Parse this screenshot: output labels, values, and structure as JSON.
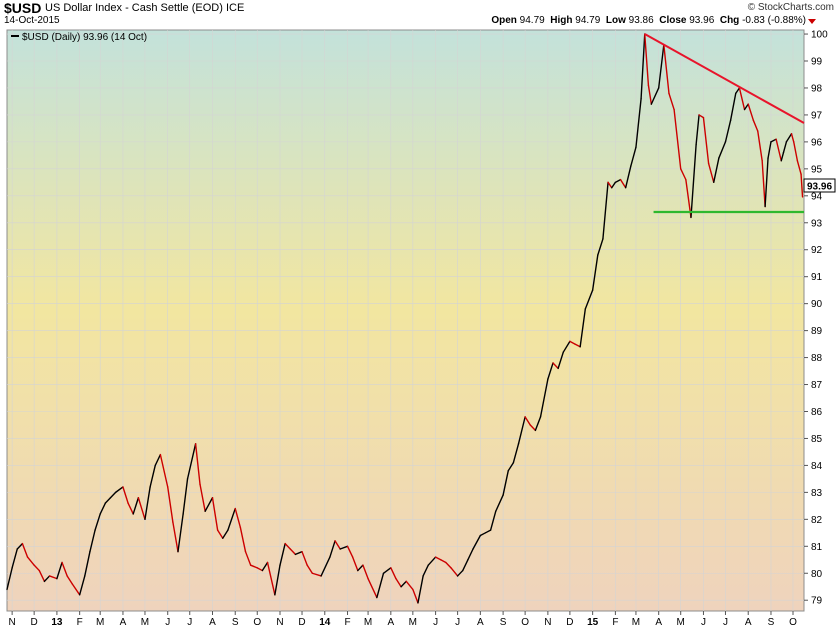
{
  "header": {
    "ticker": "$USD",
    "name": "US Dollar Index - Cash Settle (EOD)",
    "exchange": "ICE",
    "date": "14-Oct-2015",
    "brand": "© StockCharts.com",
    "open_label": "Open",
    "open": "94.79",
    "high_label": "High",
    "high": "94.79",
    "low_label": "Low",
    "low": "93.86",
    "close_label": "Close",
    "close": "93.96",
    "chg_label": "Chg",
    "chg": "-0.83 (-0.88%)"
  },
  "legend": {
    "text": "$USD (Daily) 93.96 (14 Oct)"
  },
  "last_price_label": "93.96",
  "colors": {
    "up": "#000000",
    "down": "#cc0000",
    "resistance": "#e8142b",
    "support": "#2eb82e",
    "bg_top": "#c3e2db",
    "bg_mid": "#f2e6a0",
    "bg_bottom": "#efd3bd"
  },
  "chart_data": {
    "type": "line",
    "title": "$USD US Dollar Index - Cash Settle (EOD)",
    "ylim": [
      78.6,
      100.15
    ],
    "xlim": [
      "2012-10-25",
      "2015-10-16"
    ],
    "grid": true,
    "y_ticks": [
      79,
      80,
      81,
      82,
      83,
      84,
      85,
      86,
      87,
      88,
      89,
      90,
      91,
      92,
      93,
      94,
      95,
      96,
      97,
      98,
      99,
      100
    ],
    "x_ticks": [
      {
        "label": "N",
        "date": "2012-11-01"
      },
      {
        "label": "D",
        "date": "2012-12-01"
      },
      {
        "label": "13",
        "date": "2013-01-01",
        "bold": true
      },
      {
        "label": "F",
        "date": "2013-02-01"
      },
      {
        "label": "M",
        "date": "2013-03-01"
      },
      {
        "label": "A",
        "date": "2013-04-01"
      },
      {
        "label": "M",
        "date": "2013-05-01"
      },
      {
        "label": "J",
        "date": "2013-06-01"
      },
      {
        "label": "J",
        "date": "2013-07-01"
      },
      {
        "label": "A",
        "date": "2013-08-01"
      },
      {
        "label": "S",
        "date": "2013-09-01"
      },
      {
        "label": "O",
        "date": "2013-10-01"
      },
      {
        "label": "N",
        "date": "2013-11-01"
      },
      {
        "label": "D",
        "date": "2013-12-01"
      },
      {
        "label": "14",
        "date": "2014-01-01",
        "bold": true
      },
      {
        "label": "F",
        "date": "2014-02-01"
      },
      {
        "label": "M",
        "date": "2014-03-01"
      },
      {
        "label": "A",
        "date": "2014-04-01"
      },
      {
        "label": "M",
        "date": "2014-05-01"
      },
      {
        "label": "J",
        "date": "2014-06-01"
      },
      {
        "label": "J",
        "date": "2014-07-01"
      },
      {
        "label": "A",
        "date": "2014-08-01"
      },
      {
        "label": "S",
        "date": "2014-09-01"
      },
      {
        "label": "O",
        "date": "2014-10-01"
      },
      {
        "label": "N",
        "date": "2014-11-01"
      },
      {
        "label": "D",
        "date": "2014-12-01"
      },
      {
        "label": "15",
        "date": "2015-01-01",
        "bold": true
      },
      {
        "label": "F",
        "date": "2015-02-01"
      },
      {
        "label": "M",
        "date": "2015-03-01"
      },
      {
        "label": "A",
        "date": "2015-04-01"
      },
      {
        "label": "M",
        "date": "2015-05-01"
      },
      {
        "label": "J",
        "date": "2015-06-01"
      },
      {
        "label": "J",
        "date": "2015-07-01"
      },
      {
        "label": "A",
        "date": "2015-08-01"
      },
      {
        "label": "S",
        "date": "2015-09-01"
      },
      {
        "label": "O",
        "date": "2015-10-01"
      }
    ],
    "series": [
      {
        "name": "$USD (Daily)",
        "points": [
          [
            "2012-10-25",
            79.4
          ],
          [
            "2012-11-01",
            80.2
          ],
          [
            "2012-11-08",
            80.9
          ],
          [
            "2012-11-15",
            81.1
          ],
          [
            "2012-11-22",
            80.6
          ],
          [
            "2012-12-01",
            80.3
          ],
          [
            "2012-12-08",
            80.1
          ],
          [
            "2012-12-15",
            79.7
          ],
          [
            "2012-12-22",
            79.9
          ],
          [
            "2013-01-01",
            79.8
          ],
          [
            "2013-01-08",
            80.4
          ],
          [
            "2013-01-15",
            79.9
          ],
          [
            "2013-01-22",
            79.6
          ],
          [
            "2013-02-01",
            79.2
          ],
          [
            "2013-02-08",
            79.9
          ],
          [
            "2013-02-15",
            80.8
          ],
          [
            "2013-02-22",
            81.6
          ],
          [
            "2013-03-01",
            82.2
          ],
          [
            "2013-03-08",
            82.6
          ],
          [
            "2013-03-15",
            82.8
          ],
          [
            "2013-03-22",
            83.0
          ],
          [
            "2013-04-01",
            83.2
          ],
          [
            "2013-04-08",
            82.6
          ],
          [
            "2013-04-15",
            82.2
          ],
          [
            "2013-04-22",
            82.8
          ],
          [
            "2013-05-01",
            82.0
          ],
          [
            "2013-05-08",
            83.2
          ],
          [
            "2013-05-15",
            84.0
          ],
          [
            "2013-05-22",
            84.4
          ],
          [
            "2013-06-01",
            83.2
          ],
          [
            "2013-06-08",
            81.9
          ],
          [
            "2013-06-15",
            80.8
          ],
          [
            "2013-06-22",
            82.2
          ],
          [
            "2013-06-28",
            83.5
          ],
          [
            "2013-07-09",
            84.8
          ],
          [
            "2013-07-15",
            83.3
          ],
          [
            "2013-07-22",
            82.3
          ],
          [
            "2013-08-01",
            82.8
          ],
          [
            "2013-08-08",
            81.6
          ],
          [
            "2013-08-15",
            81.3
          ],
          [
            "2013-08-22",
            81.6
          ],
          [
            "2013-09-01",
            82.4
          ],
          [
            "2013-09-08",
            81.7
          ],
          [
            "2013-09-15",
            80.8
          ],
          [
            "2013-09-22",
            80.3
          ],
          [
            "2013-10-01",
            80.2
          ],
          [
            "2013-10-08",
            80.1
          ],
          [
            "2013-10-15",
            80.4
          ],
          [
            "2013-10-25",
            79.2
          ],
          [
            "2013-11-01",
            80.3
          ],
          [
            "2013-11-08",
            81.1
          ],
          [
            "2013-11-15",
            80.9
          ],
          [
            "2013-11-22",
            80.7
          ],
          [
            "2013-12-01",
            80.8
          ],
          [
            "2013-12-08",
            80.3
          ],
          [
            "2013-12-15",
            80.0
          ],
          [
            "2013-12-27",
            79.9
          ],
          [
            "2014-01-08",
            80.6
          ],
          [
            "2014-01-15",
            81.2
          ],
          [
            "2014-01-22",
            80.9
          ],
          [
            "2014-02-01",
            81.0
          ],
          [
            "2014-02-08",
            80.6
          ],
          [
            "2014-02-15",
            80.1
          ],
          [
            "2014-02-22",
            80.3
          ],
          [
            "2014-03-01",
            79.8
          ],
          [
            "2014-03-13",
            79.1
          ],
          [
            "2014-03-22",
            80.0
          ],
          [
            "2014-04-01",
            80.2
          ],
          [
            "2014-04-08",
            79.8
          ],
          [
            "2014-04-15",
            79.5
          ],
          [
            "2014-04-22",
            79.7
          ],
          [
            "2014-05-01",
            79.4
          ],
          [
            "2014-05-08",
            78.9
          ],
          [
            "2014-05-15",
            79.9
          ],
          [
            "2014-05-22",
            80.3
          ],
          [
            "2014-06-01",
            80.6
          ],
          [
            "2014-06-08",
            80.5
          ],
          [
            "2014-06-15",
            80.4
          ],
          [
            "2014-06-22",
            80.2
          ],
          [
            "2014-07-01",
            79.9
          ],
          [
            "2014-07-08",
            80.1
          ],
          [
            "2014-07-15",
            80.5
          ],
          [
            "2014-07-22",
            80.9
          ],
          [
            "2014-08-01",
            81.4
          ],
          [
            "2014-08-08",
            81.5
          ],
          [
            "2014-08-15",
            81.6
          ],
          [
            "2014-08-22",
            82.3
          ],
          [
            "2014-09-01",
            82.9
          ],
          [
            "2014-09-08",
            83.8
          ],
          [
            "2014-09-15",
            84.1
          ],
          [
            "2014-09-22",
            84.8
          ],
          [
            "2014-10-01",
            85.8
          ],
          [
            "2014-10-08",
            85.5
          ],
          [
            "2014-10-15",
            85.3
          ],
          [
            "2014-10-22",
            85.8
          ],
          [
            "2014-11-01",
            87.2
          ],
          [
            "2014-11-08",
            87.8
          ],
          [
            "2014-11-15",
            87.6
          ],
          [
            "2014-11-22",
            88.2
          ],
          [
            "2014-12-01",
            88.6
          ],
          [
            "2014-12-08",
            88.5
          ],
          [
            "2014-12-15",
            88.4
          ],
          [
            "2014-12-22",
            89.8
          ],
          [
            "2015-01-01",
            90.5
          ],
          [
            "2015-01-08",
            91.8
          ],
          [
            "2015-01-15",
            92.4
          ],
          [
            "2015-01-22",
            94.5
          ],
          [
            "2015-01-27",
            94.3
          ],
          [
            "2015-02-01",
            94.5
          ],
          [
            "2015-02-08",
            94.6
          ],
          [
            "2015-02-15",
            94.3
          ],
          [
            "2015-02-22",
            95.1
          ],
          [
            "2015-03-01",
            95.8
          ],
          [
            "2015-03-08",
            97.6
          ],
          [
            "2015-03-13",
            100.0
          ],
          [
            "2015-03-18",
            98.1
          ],
          [
            "2015-03-22",
            97.4
          ],
          [
            "2015-04-01",
            98.0
          ],
          [
            "2015-04-08",
            99.6
          ],
          [
            "2015-04-15",
            97.8
          ],
          [
            "2015-04-22",
            97.2
          ],
          [
            "2015-05-01",
            95.0
          ],
          [
            "2015-05-08",
            94.6
          ],
          [
            "2015-05-15",
            93.2
          ],
          [
            "2015-05-22",
            95.9
          ],
          [
            "2015-05-26",
            97.0
          ],
          [
            "2015-06-01",
            96.9
          ],
          [
            "2015-06-08",
            95.2
          ],
          [
            "2015-06-15",
            94.5
          ],
          [
            "2015-06-22",
            95.4
          ],
          [
            "2015-07-01",
            96.0
          ],
          [
            "2015-07-08",
            96.8
          ],
          [
            "2015-07-15",
            97.8
          ],
          [
            "2015-07-20",
            98.0
          ],
          [
            "2015-07-27",
            97.2
          ],
          [
            "2015-08-01",
            97.4
          ],
          [
            "2015-08-08",
            96.8
          ],
          [
            "2015-08-14",
            96.4
          ],
          [
            "2015-08-20",
            95.3
          ],
          [
            "2015-08-24",
            93.6
          ],
          [
            "2015-08-28",
            95.4
          ],
          [
            "2015-09-01",
            96.0
          ],
          [
            "2015-09-08",
            96.1
          ],
          [
            "2015-09-15",
            95.3
          ],
          [
            "2015-09-18",
            95.6
          ],
          [
            "2015-09-22",
            96.0
          ],
          [
            "2015-09-29",
            96.3
          ],
          [
            "2015-10-02",
            96.0
          ],
          [
            "2015-10-07",
            95.3
          ],
          [
            "2015-10-12",
            94.8
          ],
          [
            "2015-10-14",
            93.96
          ]
        ]
      }
    ],
    "annotations": [
      {
        "type": "trendline",
        "name": "resistance",
        "from": [
          "2015-03-13",
          100.0
        ],
        "to": [
          "2015-10-16",
          96.7
        ]
      },
      {
        "type": "hline",
        "name": "support",
        "value": 93.4,
        "from": "2015-03-25",
        "to": "2015-10-16"
      }
    ]
  }
}
